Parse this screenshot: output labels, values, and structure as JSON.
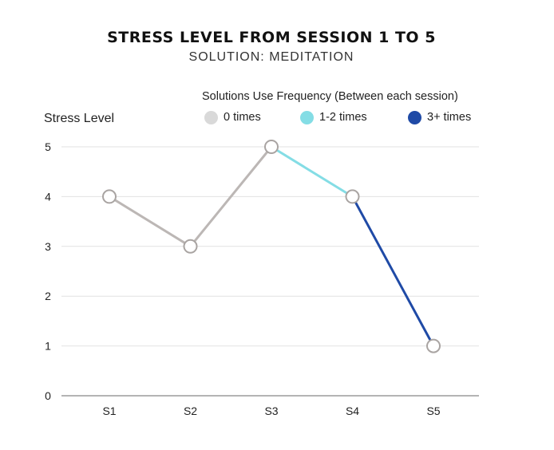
{
  "chart_data": {
    "type": "line",
    "title": "STRESS LEVEL FROM SESSION 1 TO 5",
    "subtitle": "SOLUTION: MEDITATION",
    "ylabel": "Stress Level",
    "xlabel": "",
    "categories": [
      "S1",
      "S2",
      "S3",
      "S4",
      "S5"
    ],
    "values": [
      4,
      3,
      5,
      4,
      1
    ],
    "ylim": [
      0,
      5
    ],
    "yticks": [
      "0",
      "1",
      "2",
      "3",
      "4",
      "5"
    ],
    "grid": true,
    "legend": {
      "title": "Solutions Use Frequency (Between each session)",
      "placement": "top",
      "entries": [
        {
          "label": "0 times",
          "color": "#d9d9d9"
        },
        {
          "label": "1-2 times",
          "color": "#84dde5"
        },
        {
          "label": "3+ times",
          "color": "#1f4aa6"
        }
      ]
    },
    "segments": [
      {
        "from": "S1",
        "to": "S2",
        "frequency": "0 times",
        "color": "#bcb7b5"
      },
      {
        "from": "S2",
        "to": "S3",
        "frequency": "0 times",
        "color": "#bcb7b5"
      },
      {
        "from": "S3",
        "to": "S4",
        "frequency": "1-2 times",
        "color": "#84dde5"
      },
      {
        "from": "S4",
        "to": "S5",
        "frequency": "3+ times",
        "color": "#1f4aa6"
      }
    ],
    "marker_color": "#a9a4a2"
  }
}
